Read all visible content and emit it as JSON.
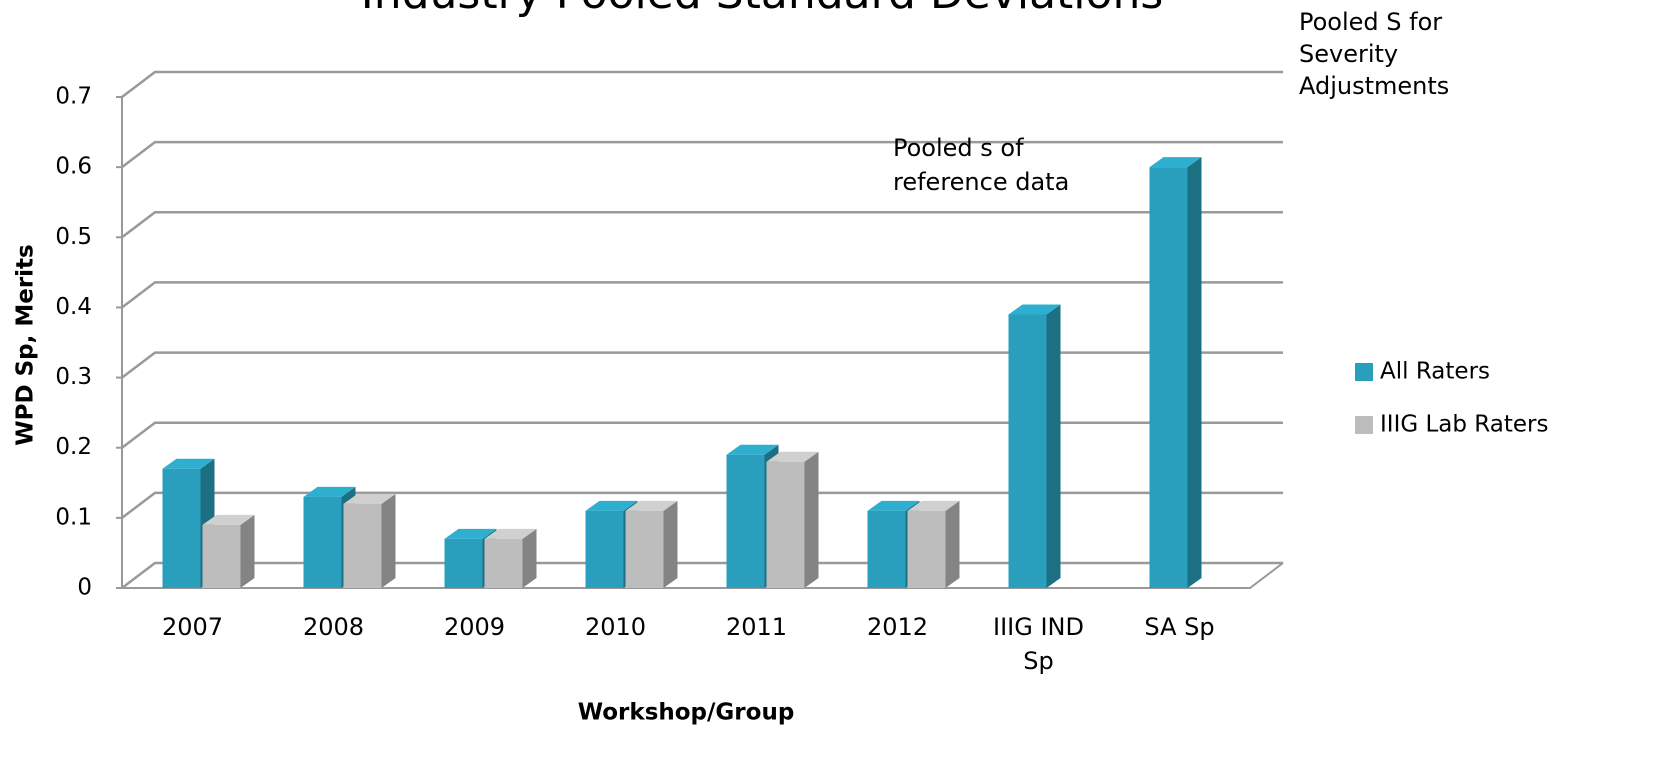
{
  "chart_data": {
    "type": "bar3d",
    "title": "Industry Pooled Standard Deviations",
    "ylabel": "WPD Sp, Merits",
    "xlabel": "Workshop/Group",
    "categories": [
      "2007",
      "2008",
      "2009",
      "2010",
      "2011",
      "2012",
      "IIIG IND Sp",
      "SA Sp"
    ],
    "series": [
      {
        "name": "All Raters",
        "color": "#2a9fbd",
        "values": [
          0.17,
          0.13,
          0.07,
          0.11,
          0.19,
          0.11,
          0.39,
          0.6
        ]
      },
      {
        "name": "IIIG Lab Raters",
        "color": "#bdbdbd",
        "values": [
          0.09,
          0.12,
          0.07,
          0.11,
          0.18,
          0.11,
          null,
          null
        ]
      }
    ],
    "ylim": [
      0,
      0.7
    ],
    "yticks": [
      0,
      0.1,
      0.2,
      0.3,
      0.4,
      0.5,
      0.6,
      0.7
    ],
    "grid": true,
    "legend": "right",
    "annotations": [
      "Pooled s of reference data",
      "Pooled S for Severity Adjustments"
    ]
  }
}
